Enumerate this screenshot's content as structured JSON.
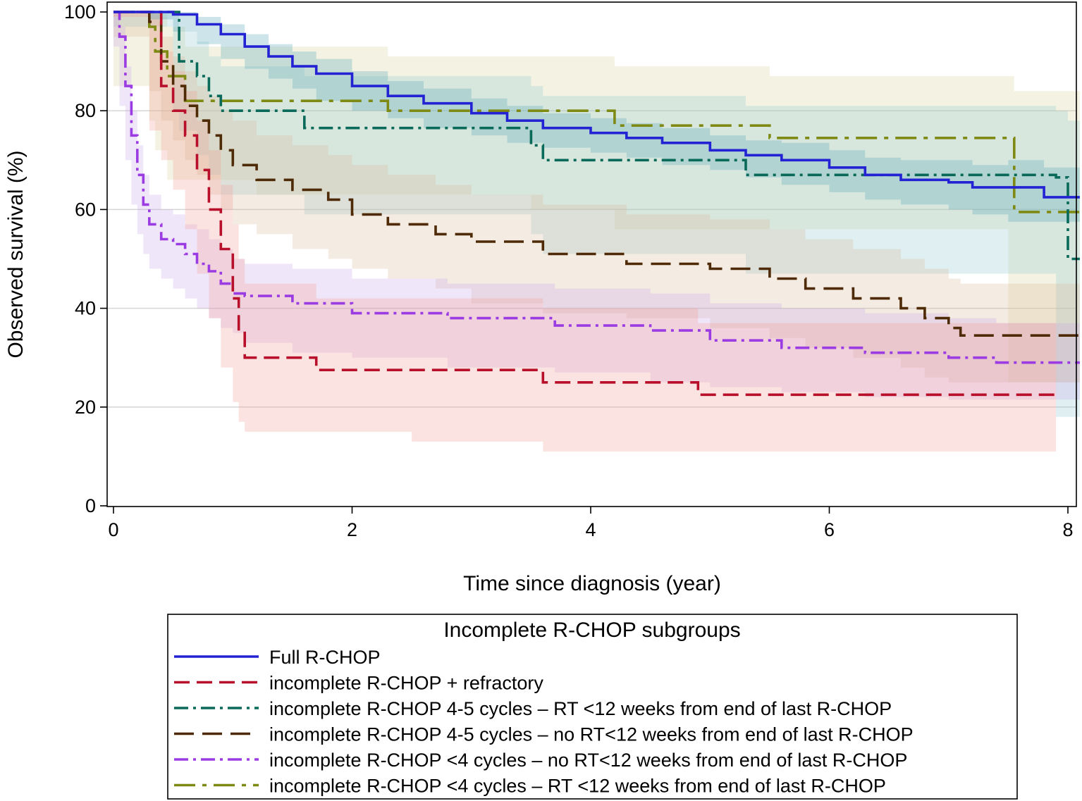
{
  "chart_data": {
    "type": "line",
    "title": "",
    "xlabel": "Time since diagnosis (year)",
    "ylabel": "Observed survival (%)",
    "xlim": [
      0,
      8.1
    ],
    "ylim": [
      0,
      100
    ],
    "x_ticks": [
      0,
      2,
      4,
      6,
      8
    ],
    "y_ticks": [
      0,
      20,
      40,
      60,
      80,
      100
    ],
    "grid": "horizontal",
    "legend": {
      "title": "Incomplete R-CHOP subgroups",
      "placement": "bottom"
    },
    "series": [
      {
        "id": "full",
        "name": "Full R-CHOP",
        "color": "#2323d4",
        "dash": "solid",
        "band_color": "#4aa3b5",
        "x": [
          0,
          0.3,
          0.5,
          0.7,
          0.9,
          1.1,
          1.3,
          1.5,
          1.7,
          2.0,
          2.3,
          2.6,
          3.0,
          3.3,
          3.6,
          4.0,
          4.3,
          4.6,
          5.0,
          5.3,
          5.6,
          6.0,
          6.3,
          6.6,
          7.0,
          7.2,
          7.5,
          7.8,
          8.1
        ],
        "y": [
          100,
          100,
          99.5,
          97.5,
          95.5,
          93,
          91,
          89,
          87.5,
          85,
          83,
          81.5,
          79.5,
          78,
          76.5,
          75.5,
          74.5,
          73.5,
          72,
          71,
          70,
          68.5,
          67,
          66,
          65.5,
          64.5,
          64.5,
          62.5,
          62.5
        ],
        "lower": [
          100,
          100,
          98.5,
          96,
          93.5,
          90.5,
          88.5,
          86.5,
          84.5,
          82,
          80,
          78.5,
          76.5,
          75,
          73.5,
          72.5,
          71.5,
          70.5,
          69,
          68,
          66.5,
          65,
          63.5,
          62,
          61,
          60,
          59,
          57.5,
          57.5
        ],
        "upper": [
          100,
          100,
          100,
          99,
          97.5,
          95.5,
          93.5,
          92,
          90.5,
          88,
          86,
          84.5,
          82.5,
          81,
          79.5,
          78.5,
          77.5,
          76.5,
          75,
          74,
          73.5,
          72,
          70.5,
          70,
          70,
          69,
          70,
          68.5,
          68.5
        ]
      },
      {
        "id": "refractory",
        "name": "incomplete R-CHOP + refractory",
        "color": "#b8102a",
        "dash": "long",
        "band_color": "#f29a92",
        "x": [
          0,
          0.3,
          0.4,
          0.5,
          0.6,
          0.7,
          0.8,
          0.9,
          1.0,
          1.05,
          1.1,
          1.7,
          2.5,
          3.6,
          4.9,
          7.9
        ],
        "y": [
          100,
          100,
          85,
          80,
          75,
          68,
          60,
          52,
          42,
          35,
          30,
          27.5,
          27.5,
          25,
          22.5,
          22.5
        ],
        "lower": [
          100,
          99,
          76,
          70,
          64,
          56,
          47,
          38,
          28,
          21,
          17,
          15,
          15,
          13,
          11,
          11
        ],
        "upper": [
          100,
          100,
          92,
          88,
          84,
          78,
          72,
          65,
          57,
          50,
          45,
          42,
          42,
          40,
          37,
          37
        ]
      },
      {
        "id": "rt45",
        "name": "incomplete R-CHOP 4-5 cycles – RT <12 weeks from end of last R-CHOP",
        "color": "#0a6a5a",
        "dash": "dashdot",
        "band_color": "#8fc8cf",
        "x": [
          0,
          0.5,
          0.55,
          0.7,
          0.8,
          0.9,
          1.6,
          3.5,
          3.6,
          5.3,
          7.9,
          8.0,
          8.1
        ],
        "y": [
          100,
          100,
          90,
          87,
          83,
          80,
          76.5,
          73,
          70,
          67,
          66.5,
          50,
          50
        ],
        "lower": [
          100,
          97,
          80,
          76,
          71,
          67,
          63,
          59,
          55,
          51,
          47,
          18,
          18
        ],
        "upper": [
          100,
          100,
          96,
          94,
          91,
          89,
          87,
          85,
          83,
          81,
          80,
          78,
          78
        ]
      },
      {
        "id": "nort45",
        "name": "incomplete R-CHOP 4-5 cycles – no RT<12 weeks from end of last R-CHOP",
        "color": "#4e2a06",
        "dash": "longdash",
        "band_color": "#d9b796",
        "x": [
          0,
          0.3,
          0.4,
          0.5,
          0.6,
          0.7,
          0.8,
          0.9,
          1.0,
          1.2,
          1.5,
          1.8,
          2.0,
          2.3,
          2.7,
          3.0,
          3.6,
          4.3,
          5.0,
          5.5,
          5.8,
          6.2,
          6.6,
          6.8,
          7.0,
          7.1,
          8.1
        ],
        "y": [
          100,
          98,
          90,
          85,
          81,
          78,
          75,
          72,
          69,
          66,
          64,
          62,
          59,
          57,
          55,
          53.5,
          51,
          49,
          48,
          46,
          44,
          42,
          40,
          38,
          36,
          34.5,
          34.5
        ],
        "lower": [
          100,
          95,
          84,
          78,
          74,
          70,
          67,
          63,
          60,
          57,
          55,
          52,
          50,
          48,
          46,
          44,
          41,
          39,
          38,
          36,
          34,
          32,
          30,
          28,
          26,
          25,
          25
        ],
        "upper": [
          100,
          100,
          95,
          91,
          88,
          85,
          83,
          80,
          78,
          75,
          73,
          71,
          69,
          67,
          65,
          63,
          61,
          59,
          58,
          56,
          54,
          52,
          50,
          48,
          46,
          45,
          45
        ]
      },
      {
        "id": "nort4",
        "name": "incomplete R-CHOP <4  cycles – no RT<12 weeks from end of last R-CHOP",
        "color": "#9b3ce3",
        "dash": "dashdot",
        "band_color": "#c9a5ea",
        "x": [
          0,
          0.05,
          0.1,
          0.15,
          0.2,
          0.25,
          0.3,
          0.4,
          0.5,
          0.6,
          0.7,
          0.8,
          0.9,
          1.0,
          1.1,
          1.5,
          2.0,
          2.8,
          3.7,
          4.5,
          5.0,
          5.6,
          6.3,
          7.0,
          7.4,
          8.1
        ],
        "y": [
          100,
          95,
          85,
          75,
          67,
          61,
          57,
          54,
          53,
          51,
          49,
          47.5,
          45,
          43,
          42.5,
          41,
          39,
          38,
          36.5,
          35.5,
          33.5,
          32,
          31,
          30,
          29,
          29
        ],
        "lower": [
          100,
          93,
          81,
          70,
          61,
          55,
          51,
          48,
          46,
          44,
          42,
          40,
          38,
          36,
          35,
          33,
          31,
          30,
          28,
          27,
          25,
          24,
          23,
          22,
          21.5,
          21.5
        ],
        "upper": [
          100,
          97,
          89,
          80,
          73,
          67,
          63,
          60,
          59,
          57,
          56,
          54,
          52,
          50,
          49,
          48,
          46,
          45,
          44,
          43,
          41,
          40,
          39,
          38,
          37,
          37
        ]
      },
      {
        "id": "rt4",
        "name": "incomplete R-CHOP <4 cycles – RT <12 weeks from end of last R-CHOP",
        "color": "#7f8a14",
        "dash": "longdashdot",
        "band_color": "#d8d49a",
        "x": [
          0,
          0.3,
          0.35,
          0.45,
          0.6,
          1.2,
          2.3,
          3.5,
          4.2,
          5.5,
          7.5,
          7.55,
          8.1
        ],
        "y": [
          100,
          97,
          92,
          87,
          82,
          82,
          80,
          80,
          77,
          74.5,
          74.5,
          59.5,
          59.5
        ],
        "lower": [
          100,
          85,
          78,
          72,
          66,
          66,
          63,
          63,
          60,
          56,
          56,
          25,
          25
        ],
        "upper": [
          100,
          100,
          100,
          97,
          93,
          93,
          91,
          91,
          89,
          87,
          87,
          84,
          84
        ]
      }
    ]
  }
}
